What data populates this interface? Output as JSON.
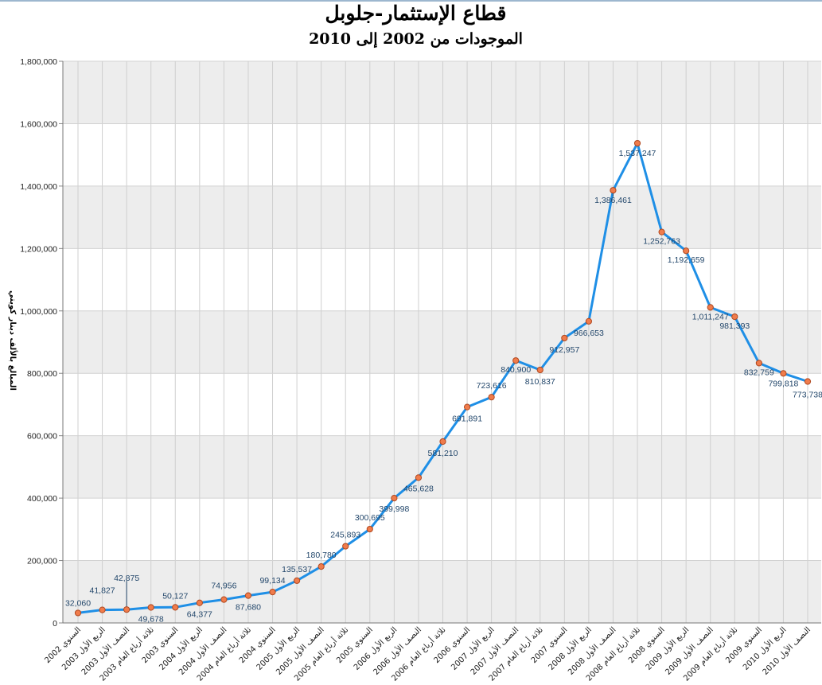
{
  "chart_data": {
    "type": "line",
    "title": "قطاع الإستثمار-جلوبل",
    "subtitle": "الموجودات من 2002 إلى 2010",
    "xlabel": "",
    "ylabel": "المبالغ بالألف دينار كويتي",
    "ylim": [
      0,
      1800000
    ],
    "yticks": [
      0,
      200000,
      400000,
      600000,
      800000,
      1000000,
      1200000,
      1400000,
      1600000,
      1800000
    ],
    "ytick_labels": [
      "0",
      "200,000",
      "400,000",
      "600,000",
      "800,000",
      "1,000,000",
      "1,200,000",
      "1,400,000",
      "1,600,000",
      "1,800,000"
    ],
    "grid": true,
    "legend": "none",
    "colors": {
      "line": "#1f8fe6",
      "marker_fill": "#f07c4c",
      "marker_stroke": "#b0481f",
      "band": "#ededed",
      "label": "#23476b"
    },
    "categories": [
      "السنوي 2002",
      "الربع الأول 2003",
      "النصف الأول 2003",
      "ثلاثة أرباع العام 2003",
      "السنوي 2003",
      "الربع الأول 2004",
      "النصف الأول 2004",
      "ثلاثة أرباع العام 2004",
      "السنوي 2004",
      "الربع الأول 2005",
      "النصف الأول 2005",
      "ثلاثة أرباع العام 2005",
      "السنوي 2005",
      "الربع الأول 2006",
      "النصف الأول 2006",
      "ثلاثة أرباع العام 2006",
      "السنوي 2006",
      "الربع الأول 2007",
      "النصف الأول 2007",
      "ثلاثة أرباع العام 2007",
      "السنوي 2007",
      "الربع الأول 2008",
      "النصف الأول 2008",
      "ثلاثة أرباع العام 2008",
      "السنوي 2008",
      "الربع الأول 2009",
      "النصف الأول 2009",
      "ثلاثة أرباع العام 2009",
      "السنوي 2009",
      "الربع الأول 2010",
      "النصف الأول 2010"
    ],
    "values": [
      32060,
      41827,
      42875,
      49678,
      50127,
      64377,
      74956,
      87680,
      99134,
      135537,
      180780,
      245893,
      300695,
      399998,
      465628,
      581210,
      691891,
      723616,
      840900,
      810837,
      912957,
      966653,
      1386461,
      1537247,
      1252763,
      1192659,
      1011247,
      981393,
      832759,
      799818,
      773738
    ],
    "value_labels": [
      "32,060",
      "41,827",
      "42,875",
      "49,678",
      "50,127",
      "64,377",
      "74,956",
      "87,680",
      "99,134",
      "135,537",
      "180,780",
      "245,893",
      "300,695",
      "399,998",
      "465,628",
      "581,210",
      "691,891",
      "723,616",
      "840,900",
      "810,837",
      "912,957",
      "966,653",
      "1,386,461",
      "1,537,247",
      "1,252,763",
      "1,192,659",
      "1,011,247",
      "981,393",
      "832,759",
      "799,818",
      "773,738"
    ]
  }
}
